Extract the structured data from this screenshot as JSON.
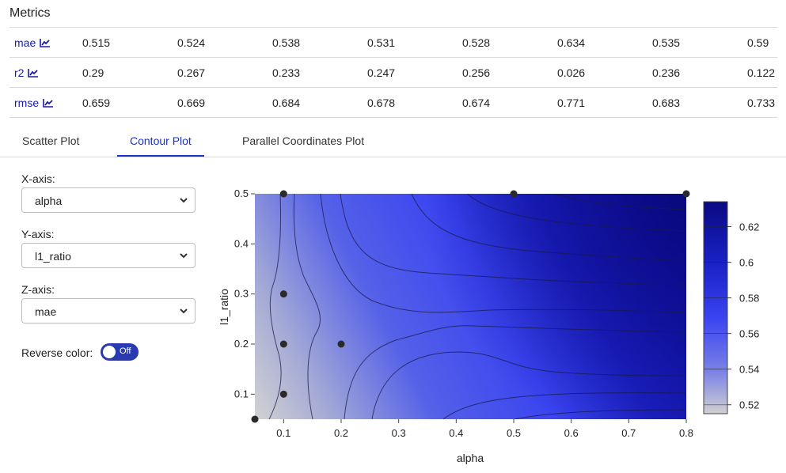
{
  "metrics": {
    "title": "Metrics",
    "rows": [
      {
        "name": "mae",
        "icon": "line-chart-icon",
        "values": [
          "0.515",
          "0.524",
          "0.538",
          "0.531",
          "0.528",
          "0.634",
          "0.535",
          "0.59"
        ]
      },
      {
        "name": "r2",
        "icon": "line-chart-icon",
        "values": [
          "0.29",
          "0.267",
          "0.233",
          "0.247",
          "0.256",
          "0.026",
          "0.236",
          "0.122"
        ]
      },
      {
        "name": "rmse",
        "icon": "line-chart-icon",
        "values": [
          "0.659",
          "0.669",
          "0.684",
          "0.678",
          "0.674",
          "0.771",
          "0.683",
          "0.733"
        ]
      }
    ]
  },
  "tabs": [
    {
      "label": "Scatter Plot",
      "active": false
    },
    {
      "label": "Contour Plot",
      "active": true
    },
    {
      "label": "Parallel Coordinates Plot",
      "active": false
    }
  ],
  "controls": {
    "x_axis": {
      "label": "X-axis:",
      "value": "alpha"
    },
    "y_axis": {
      "label": "Y-axis:",
      "value": "l1_ratio"
    },
    "z_axis": {
      "label": "Z-axis:",
      "value": "mae"
    },
    "reverse_color": {
      "label": "Reverse color:",
      "state": "Off"
    }
  },
  "chart_data": {
    "type": "heatmap",
    "subtype": "contour",
    "xlabel": "alpha",
    "ylabel": "l1_ratio",
    "xlim": [
      0.05,
      0.8
    ],
    "ylim": [
      0.05,
      0.5
    ],
    "xticks": [
      "0.1",
      "0.2",
      "0.3",
      "0.4",
      "0.5",
      "0.6",
      "0.7",
      "0.8"
    ],
    "yticks": [
      "0.1",
      "0.2",
      "0.3",
      "0.4",
      "0.5"
    ],
    "colorbar": {
      "range": [
        0.515,
        0.634
      ],
      "ticks": [
        "0.52",
        "0.54",
        "0.56",
        "0.58",
        "0.6",
        "0.62"
      ]
    },
    "colors": {
      "low": "#c8c8c8",
      "mid": "#4a5af0",
      "high": "#0a0a8c"
    },
    "points": [
      {
        "x": 0.05,
        "y": 0.05
      },
      {
        "x": 0.1,
        "y": 0.1
      },
      {
        "x": 0.1,
        "y": 0.2
      },
      {
        "x": 0.1,
        "y": 0.3
      },
      {
        "x": 0.1,
        "y": 0.5
      },
      {
        "x": 0.2,
        "y": 0.2
      },
      {
        "x": 0.5,
        "y": 0.5
      },
      {
        "x": 0.8,
        "y": 0.5
      }
    ]
  }
}
